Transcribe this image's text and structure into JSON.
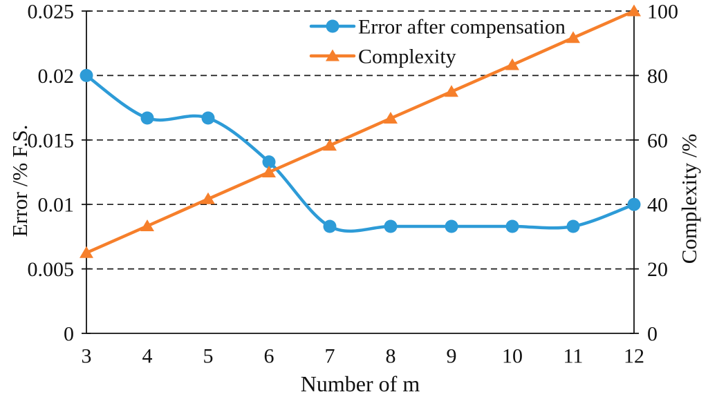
{
  "chart_data": {
    "type": "line",
    "title": "",
    "xlabel": "Number of m",
    "ylabel_left": "Error /% F.S.",
    "ylabel_right": "Complexity /%",
    "x": [
      3,
      4,
      5,
      6,
      7,
      8,
      9,
      10,
      11,
      12
    ],
    "x_tick_labels": [
      "3",
      "4",
      "5",
      "6",
      "7",
      "8",
      "9",
      "10",
      "11",
      "12"
    ],
    "ylim_left": [
      0,
      0.025
    ],
    "ylim_right": [
      0,
      100
    ],
    "y_left_ticks": [
      "0",
      "0.005",
      "0.01",
      "0.015",
      "0.02",
      "0.025"
    ],
    "y_left_tick_values": [
      0,
      0.005,
      0.01,
      0.015,
      0.02,
      0.025
    ],
    "y_right_ticks": [
      "0",
      "20",
      "40",
      "60",
      "80",
      "100"
    ],
    "y_right_tick_values": [
      0,
      20,
      40,
      60,
      80,
      100
    ],
    "grid": "horizontal-dashed-black",
    "legend_position": "top-inside",
    "series": [
      {
        "name": "Error after compensation",
        "axis": "left",
        "color": "#2D9BD7",
        "marker": "circle",
        "smooth": true,
        "values": [
          0.02,
          0.0167,
          0.0167,
          0.0133,
          0.0083,
          0.0083,
          0.0083,
          0.0083,
          0.0083,
          0.01
        ]
      },
      {
        "name": "Complexity",
        "axis": "right",
        "color": "#F67F2B",
        "marker": "triangle",
        "smooth": false,
        "values": [
          25,
          33.3,
          41.7,
          50,
          58.3,
          66.7,
          75,
          83.3,
          91.7,
          100
        ]
      }
    ],
    "axis_color": "#111111",
    "gridline_color": "#1a1a1a"
  }
}
